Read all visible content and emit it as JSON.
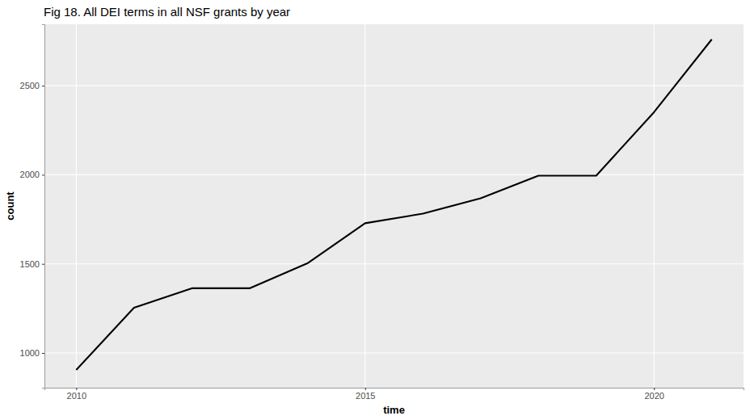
{
  "chart_data": {
    "type": "line",
    "title": "Fig 18. All DEI terms in all NSF grants by year",
    "x_label": "time",
    "y_label": "count",
    "x": [
      2010,
      2011,
      2012,
      2013,
      2014,
      2015,
      2016,
      2017,
      2018,
      2019,
      2020,
      2021
    ],
    "values": [
      905,
      1254,
      1363,
      1363,
      1503,
      1728,
      1782,
      1868,
      1995,
      1995,
      2351,
      2760
    ],
    "color": "#000000",
    "xlim": [
      2009.45,
      2021.55
    ],
    "xticks": [
      2010,
      2015,
      2020
    ],
    "ylim": [
      805,
      2845
    ],
    "yticks": [
      1000,
      1500,
      2000,
      2500
    ],
    "grid": true
  }
}
